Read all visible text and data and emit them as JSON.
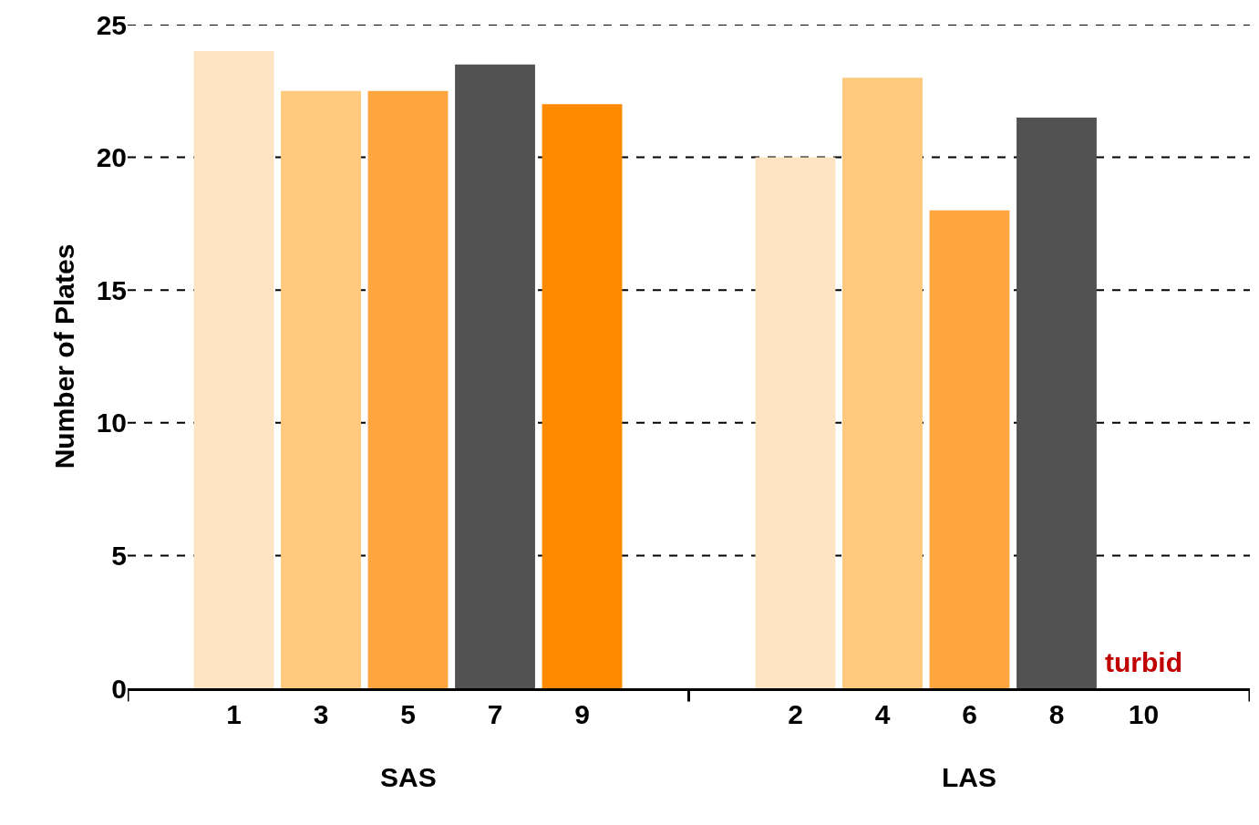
{
  "chart_data": {
    "type": "bar",
    "ylabel": "Number of Plates",
    "categories": [
      "1",
      "3",
      "5",
      "7",
      "9",
      "2",
      "4",
      "6",
      "8",
      "10"
    ],
    "values": [
      24,
      22.5,
      22.5,
      23.5,
      22,
      20,
      23,
      18,
      21.5,
      null
    ],
    "colors": [
      "#fee4c2",
      "#ffc97e",
      "#ffa640",
      "#525252",
      "#ff8a00",
      "#fee4c2",
      "#ffc97e",
      "#ffa640",
      "#525252",
      "#ff8a00"
    ],
    "ylim": [
      0,
      25
    ],
    "yticks": [
      0,
      5,
      10,
      15,
      20,
      25
    ],
    "grid": "y",
    "value_labels": [
      null,
      null,
      null,
      null,
      null,
      null,
      null,
      null,
      null,
      "turbid"
    ],
    "annotations": [
      "SAS",
      "LAS"
    ]
  }
}
